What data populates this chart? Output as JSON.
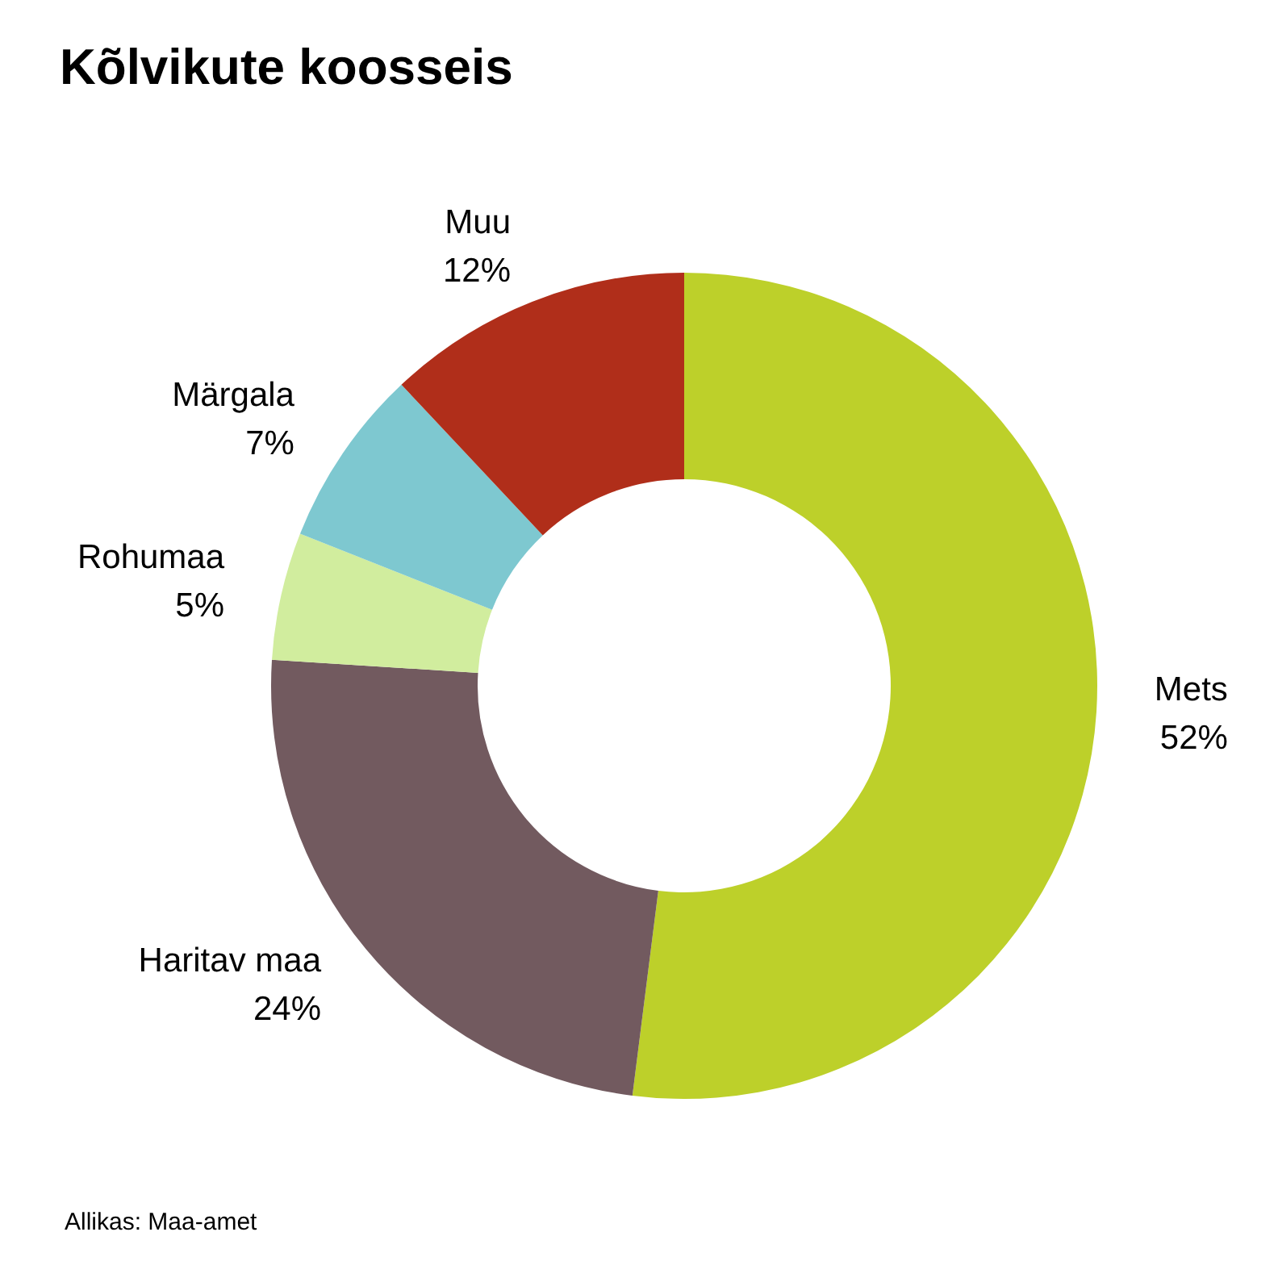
{
  "chart_data": {
    "type": "donut",
    "title": "Kõlvikute koosseis",
    "categories": [
      "Mets",
      "Haritav maa",
      "Rohumaa",
      "Märgala",
      "Muu"
    ],
    "values": [
      52,
      24,
      5,
      7,
      12
    ],
    "value_labels": [
      "52%",
      "24%",
      "5%",
      "7%",
      "12%"
    ],
    "colors": [
      "#bdd02a",
      "#725a5f",
      "#d1ed9e",
      "#7ec8d0",
      "#b02e1a"
    ],
    "annotations": [
      "Allikas: Maa-amet"
    ],
    "legend": false
  }
}
